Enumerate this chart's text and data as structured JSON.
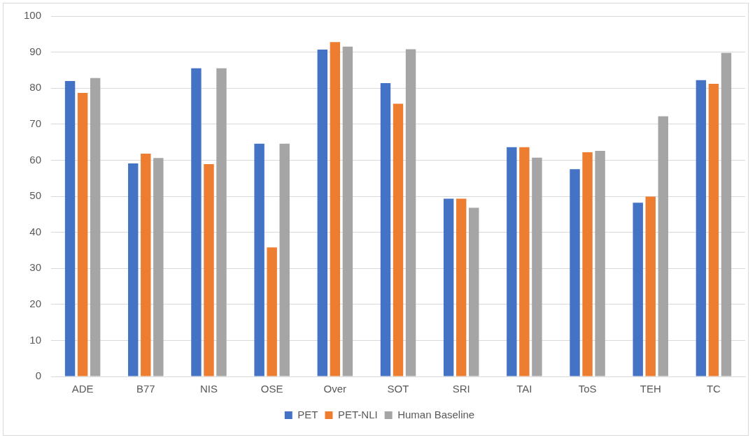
{
  "chart_data": {
    "type": "bar",
    "categories": [
      "ADE",
      "B77",
      "NIS",
      "OSE",
      "Over",
      "SOT",
      "SRI",
      "TAI",
      "ToS",
      "TEH",
      "TC"
    ],
    "series": [
      {
        "name": "PET",
        "color": "#4472c4",
        "values": [
          82.0,
          59.1,
          85.5,
          64.6,
          90.7,
          81.4,
          49.3,
          63.6,
          57.5,
          48.2,
          82.2
        ]
      },
      {
        "name": "PET-NLI",
        "color": "#ed7d31",
        "values": [
          78.7,
          61.8,
          58.9,
          35.8,
          92.8,
          75.7,
          49.3,
          63.6,
          62.2,
          49.9,
          81.2
        ]
      },
      {
        "name": "Human Baseline",
        "color": "#a5a5a5",
        "values": [
          82.8,
          60.6,
          85.5,
          64.6,
          91.5,
          90.8,
          46.8,
          60.7,
          62.6,
          72.2,
          89.8
        ]
      }
    ],
    "ylim": [
      0,
      100
    ],
    "yticks": [
      0,
      10,
      20,
      30,
      40,
      50,
      60,
      70,
      80,
      90,
      100
    ],
    "grid": "y",
    "legend": "bottom"
  }
}
